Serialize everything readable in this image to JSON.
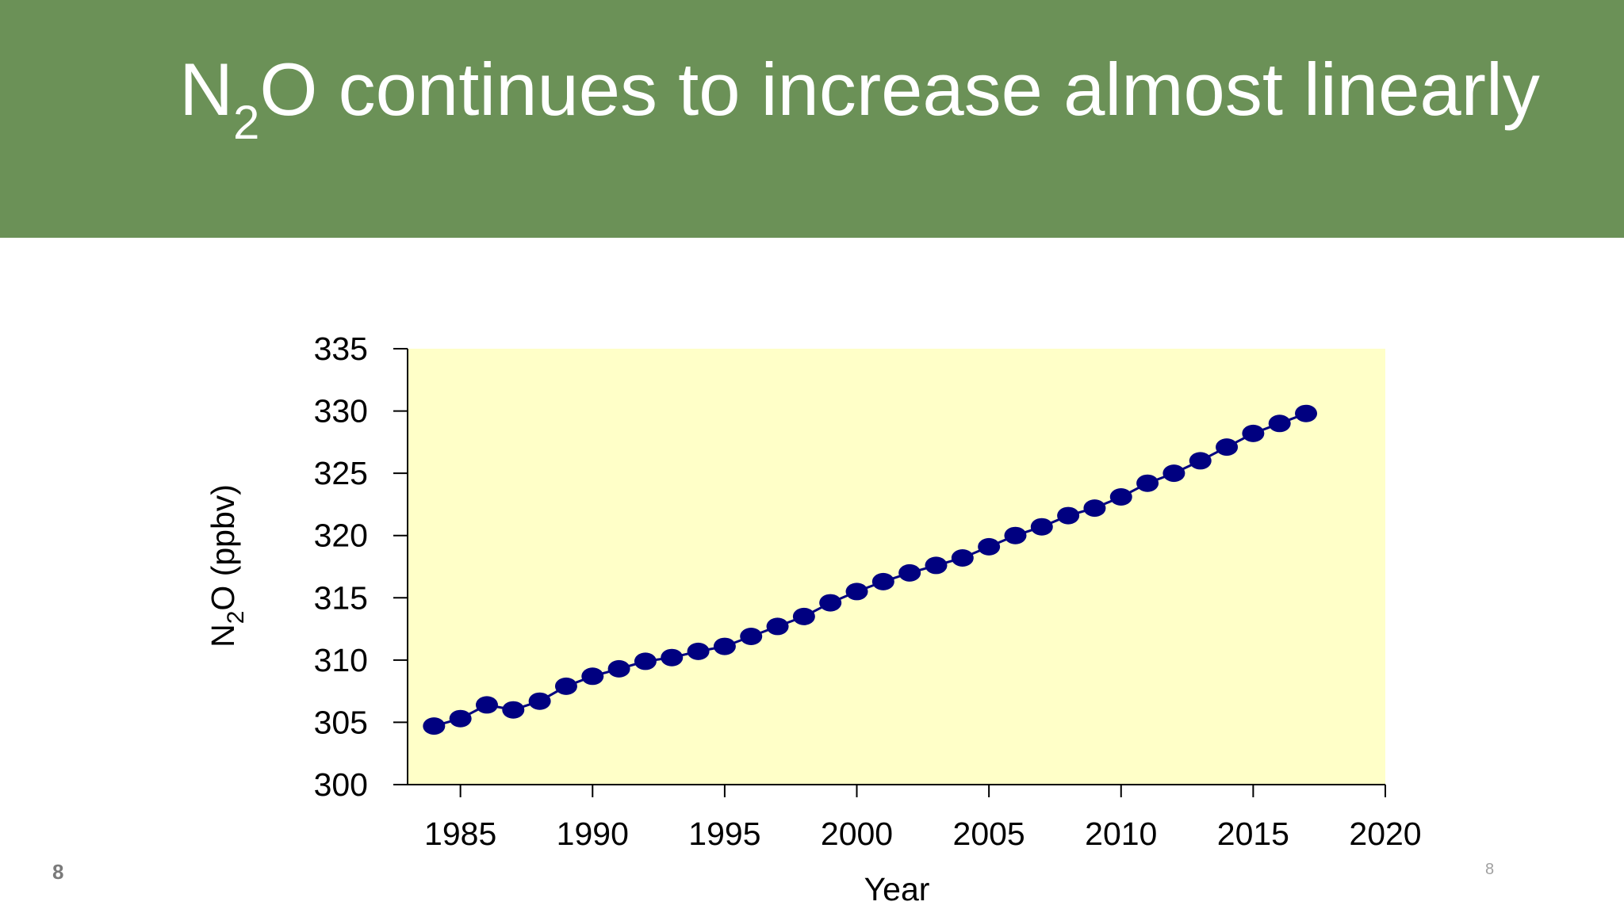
{
  "slide": {
    "title_before": "N",
    "title_sub": "2",
    "title_after": "O continues to increase almost linearly",
    "slide_number_left": "8",
    "slide_number_right": "8"
  },
  "colors": {
    "title_bg": "#6b9157",
    "plot_bg": "#ffffc8",
    "marker": "#000080"
  },
  "chart_data": {
    "type": "line",
    "title": "",
    "xlabel": "Year",
    "ylabel_main": "N",
    "ylabel_sub": "2",
    "ylabel_rest": "O (ppbv)",
    "xlim": [
      1983,
      2020
    ],
    "ylim": [
      300,
      335
    ],
    "xticks": [
      1985,
      1990,
      1995,
      2000,
      2005,
      2010,
      2015,
      2020
    ],
    "yticks": [
      300,
      305,
      310,
      315,
      320,
      325,
      330,
      335
    ],
    "grid": false,
    "markers": true,
    "series": [
      {
        "x": [
          1984,
          1985,
          1986,
          1987,
          1988,
          1989,
          1990,
          1991,
          1992,
          1993,
          1994,
          1995,
          1996,
          1997,
          1998,
          1999,
          2000,
          2001,
          2002,
          2003,
          2004,
          2005,
          2006,
          2007,
          2008,
          2009,
          2010,
          2011,
          2012,
          2013,
          2014,
          2015,
          2016,
          2017
        ],
        "y": [
          304.7,
          305.3,
          306.4,
          306.0,
          306.7,
          307.9,
          308.7,
          309.3,
          309.9,
          310.2,
          310.7,
          311.1,
          311.9,
          312.7,
          313.5,
          314.6,
          315.5,
          316.3,
          317.0,
          317.6,
          318.2,
          319.1,
          320.0,
          320.7,
          321.6,
          322.2,
          323.1,
          324.2,
          325.0,
          326.0,
          327.1,
          328.2,
          329.0,
          329.8
        ]
      }
    ]
  }
}
